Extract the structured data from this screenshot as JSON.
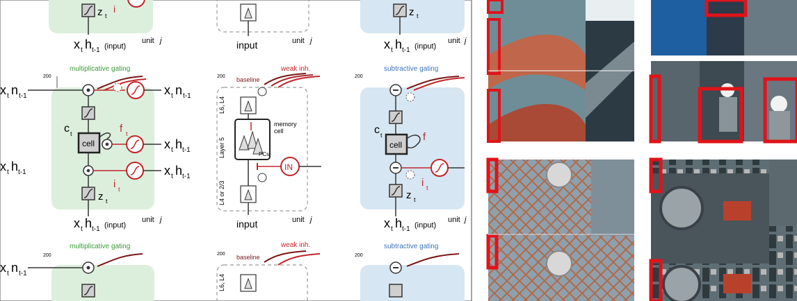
{
  "diagram": {
    "input_label": "input",
    "unit_label": "unit",
    "unit_j": "j",
    "xh_x": "x",
    "xh_t": "t",
    "xh_h": "h",
    "xh_sub": "t-1",
    "xh_paren": "(input)",
    "left_x": "x",
    "left_n": "n",
    "mult_title": "multiplicative gating",
    "sub_title": "subtractive gating",
    "weak_inh": "weak inh.",
    "baseline": "baseline",
    "axis_200": "200",
    "hz": "Hz)",
    "layer_l6": "L6, L4",
    "layer_5": "Layer 5",
    "layer_l4": "L4 or 2/3",
    "memory_cell": "memory\ncell",
    "memory_1": "memory",
    "memory_2": "cell",
    "pcs": "PCs",
    "in": "IN",
    "cell": "cell",
    "c": "c",
    "f": "f",
    "i": "i",
    "z": "z",
    "t": "t"
  },
  "colors": {
    "green_fill": "#dcefdc",
    "blue_fill": "#d6e6f2",
    "red": "#c0252a",
    "dark_red": "#7a1616",
    "green_text": "#3a9a3a",
    "blue_text": "#3b74b8",
    "dashed": "#9b9b9b",
    "gray_box": "#cfcfcf",
    "marker_red": "#e0131a"
  },
  "icons": [
    "sigmoid-icon",
    "multiply-gate-icon",
    "subtract-gate-icon",
    "pyramidal-neuron-icon",
    "interneuron-icon"
  ]
}
